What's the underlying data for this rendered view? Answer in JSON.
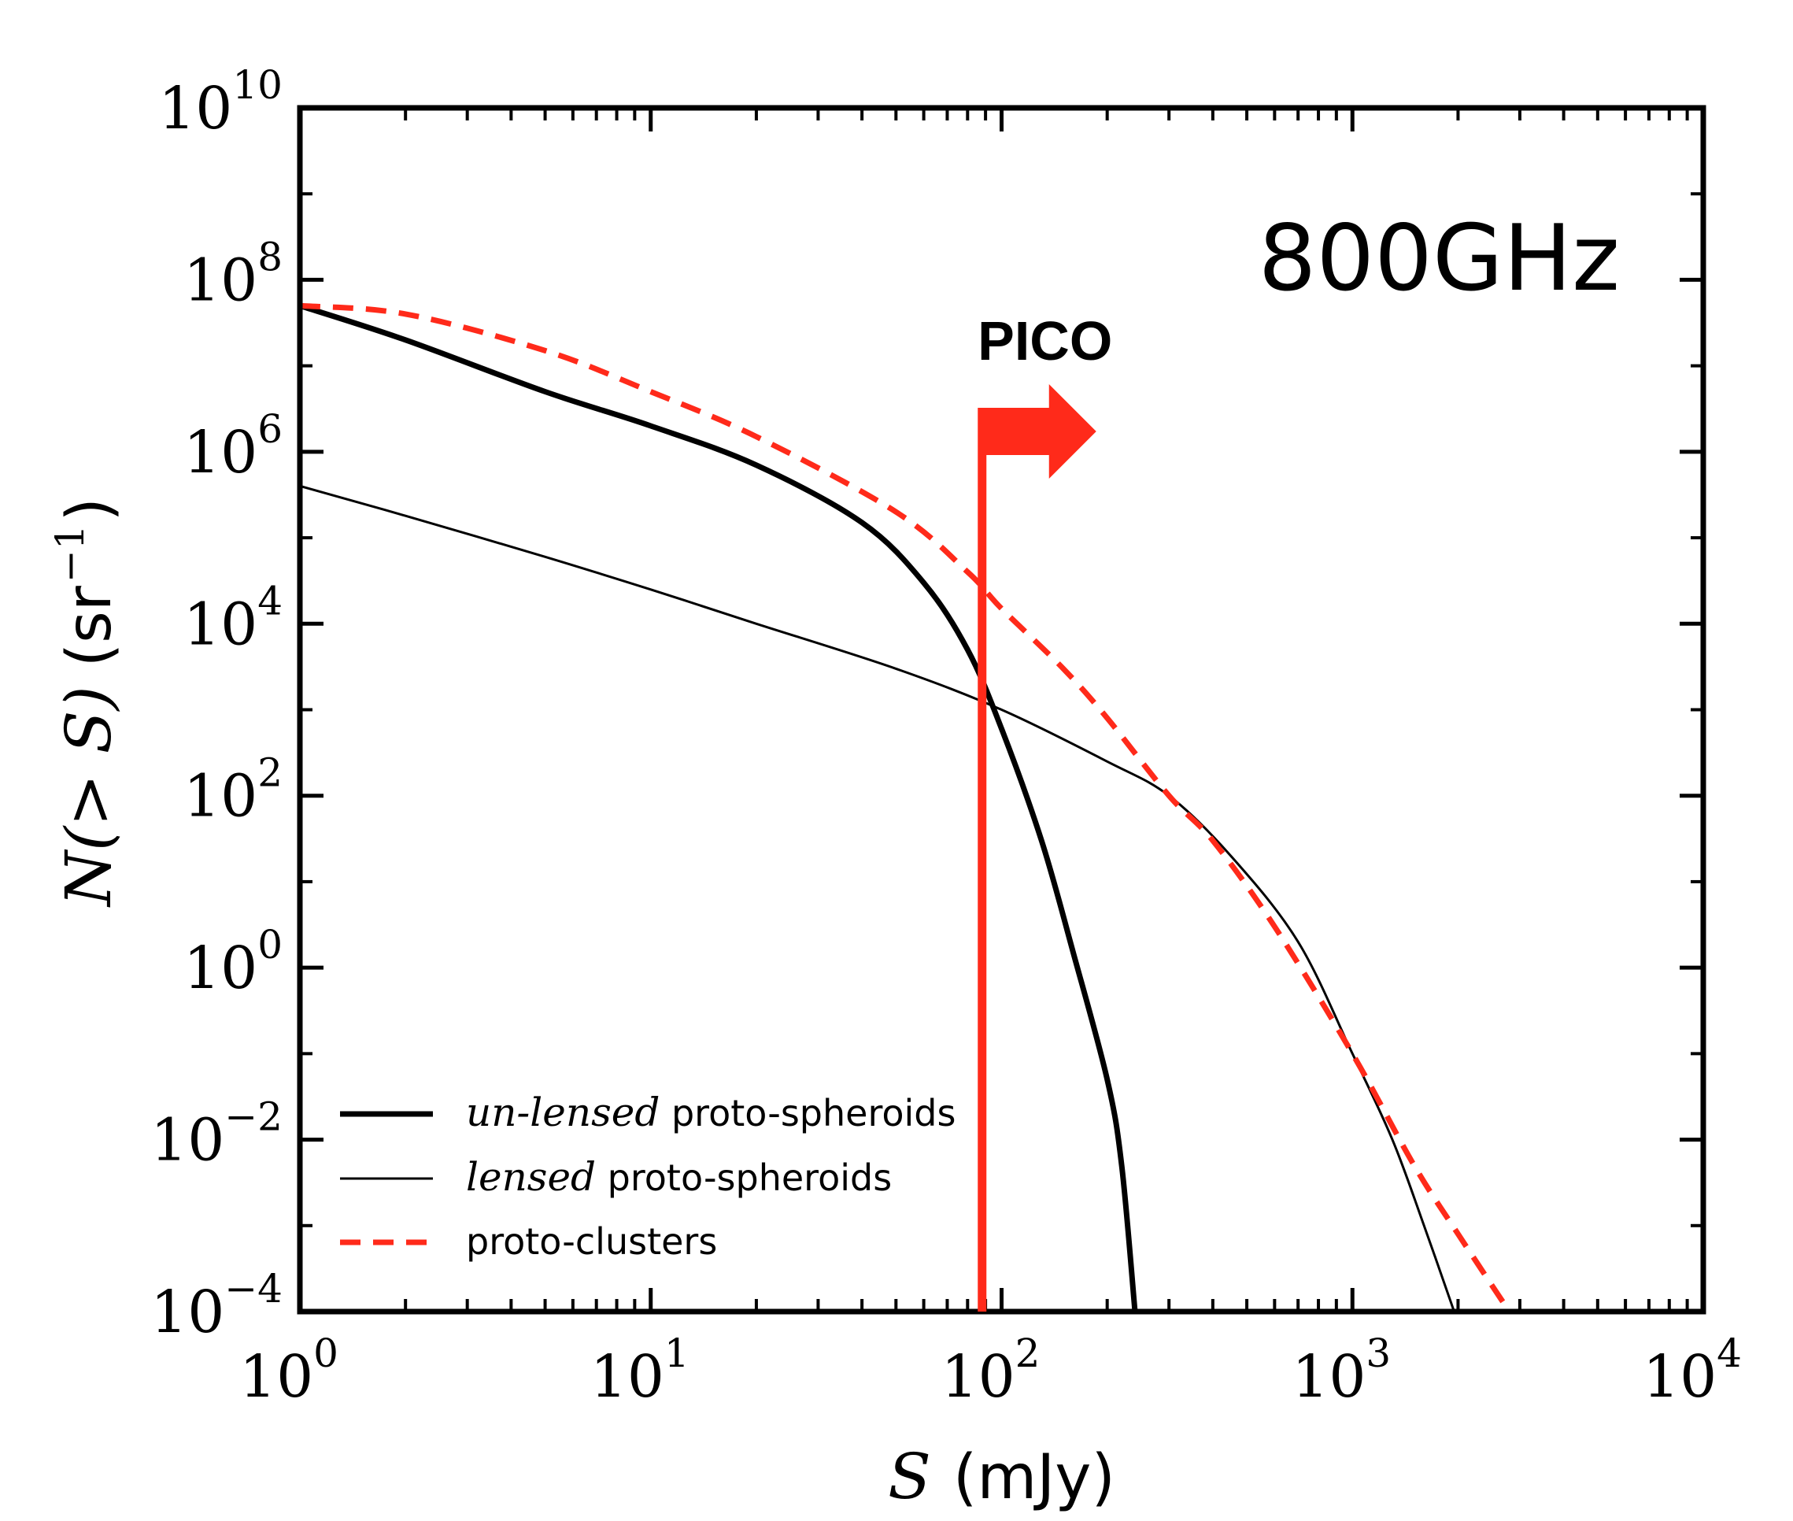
{
  "chart_data": {
    "type": "line",
    "xlabel": "S (mJy)",
    "ylabel": "N(> S) (sr⁻¹)",
    "xlabel_italic": "S",
    "xlabel_unit": "(mJy)",
    "ylabel_main": "N(> S)",
    "ylabel_unit": "(sr",
    "ylabel_unit_exp": "−1",
    "ylabel_unit_close": ")",
    "xscale": "log",
    "yscale": "log",
    "xlim": [
      1,
      10000
    ],
    "ylim": [
      0.0001,
      10000000000
    ],
    "xticks": [
      {
        "base": "10",
        "exp": "0",
        "value": 1
      },
      {
        "base": "10",
        "exp": "1",
        "value": 10
      },
      {
        "base": "10",
        "exp": "2",
        "value": 100
      },
      {
        "base": "10",
        "exp": "3",
        "value": 1000
      },
      {
        "base": "10",
        "exp": "4",
        "value": 10000
      }
    ],
    "yticks": [
      {
        "base": "10",
        "exp": "−4",
        "value": 0.0001
      },
      {
        "base": "10",
        "exp": "−2",
        "value": 0.01
      },
      {
        "base": "10",
        "exp": "0",
        "value": 1
      },
      {
        "base": "10",
        "exp": "2",
        "value": 100
      },
      {
        "base": "10",
        "exp": "4",
        "value": 10000
      },
      {
        "base": "10",
        "exp": "6",
        "value": 1000000
      },
      {
        "base": "10",
        "exp": "8",
        "value": 100000000
      },
      {
        "base": "10",
        "exp": "10",
        "value": 10000000000
      }
    ],
    "annotation": "800GHz",
    "marker": {
      "label": "PICO",
      "x": 88,
      "color": "#ff2a1a",
      "direction": "right"
    },
    "grid": false,
    "legend_position": "lower-left",
    "series": [
      {
        "name_italic": "un-lensed",
        "name_rest": " proto-spheroids",
        "style": "solid-thick",
        "color": "#000000",
        "points": [
          [
            1,
            50000000
          ],
          [
            2,
            20000000
          ],
          [
            5,
            5000000
          ],
          [
            10,
            2000000
          ],
          [
            20,
            700000
          ],
          [
            40,
            150000
          ],
          [
            60,
            30000
          ],
          [
            80,
            5000
          ],
          [
            100,
            600
          ],
          [
            130,
            30
          ],
          [
            160,
            1.5
          ],
          [
            200,
            0.05
          ],
          [
            220,
            0.005
          ],
          [
            240,
            0.0001
          ]
        ]
      },
      {
        "name_italic": "lensed",
        "name_rest": " proto-spheroids",
        "style": "solid-thin",
        "color": "#000000",
        "points": [
          [
            1,
            400000
          ],
          [
            2,
            180000
          ],
          [
            5,
            60000
          ],
          [
            10,
            25000
          ],
          [
            20,
            10000
          ],
          [
            50,
            3000
          ],
          [
            100,
            1000
          ],
          [
            200,
            250
          ],
          [
            300,
            100
          ],
          [
            450,
            20
          ],
          [
            700,
            2
          ],
          [
            1000,
            0.1
          ],
          [
            1300,
            0.01
          ],
          [
            1600,
            0.001
          ],
          [
            1950,
            0.0001
          ]
        ]
      },
      {
        "name_italic": "",
        "name_rest": "proto-clusters",
        "style": "dashed",
        "color": "#ff2a1a",
        "points": [
          [
            1,
            50000000
          ],
          [
            2,
            40000000
          ],
          [
            5,
            15000000
          ],
          [
            10,
            5000000
          ],
          [
            20,
            1500000
          ],
          [
            50,
            200000
          ],
          [
            80,
            40000
          ],
          [
            100,
            15000
          ],
          [
            150,
            3000
          ],
          [
            200,
            800
          ],
          [
            300,
            100
          ],
          [
            400,
            30
          ],
          [
            600,
            3
          ],
          [
            1000,
            0.1
          ],
          [
            1500,
            0.005
          ],
          [
            2000,
            0.0008
          ],
          [
            2800,
            0.0001
          ]
        ]
      }
    ]
  }
}
